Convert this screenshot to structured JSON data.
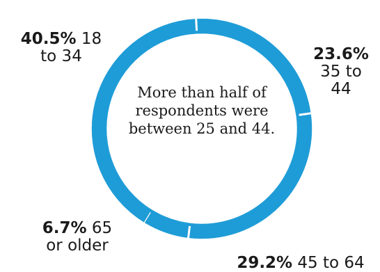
{
  "chart_data": {
    "type": "pie",
    "categories": [
      "18 to 34",
      "35 to 44",
      "45 to 64",
      "65 or older"
    ],
    "values": [
      40.5,
      23.6,
      29.2,
      6.7
    ],
    "value_labels": [
      "40.5%",
      "23.6%",
      "29.2%",
      "6.7%"
    ],
    "center_text": "More than half of respondents were between 25 and 44.",
    "colors": {
      "slice": "#1e9cd7",
      "gap": "#ffffff"
    }
  }
}
